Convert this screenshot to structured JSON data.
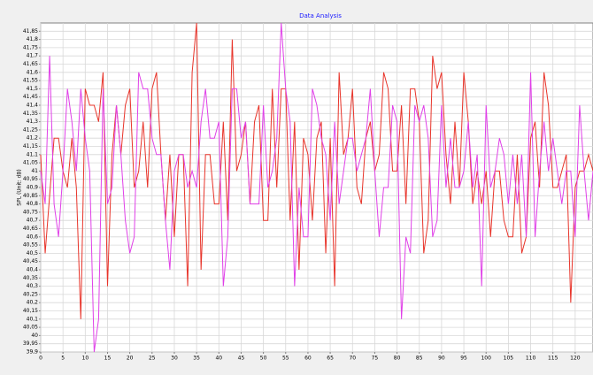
{
  "chart_data": {
    "type": "line",
    "title": "Data Analysis",
    "ylabel": "SPL (Unit: dB)",
    "xlim": [
      0,
      124
    ],
    "ylim": [
      39.9,
      41.9
    ],
    "grid": true,
    "xticks": [
      0,
      5,
      10,
      15,
      20,
      25,
      30,
      35,
      40,
      45,
      50,
      55,
      60,
      65,
      70,
      75,
      80,
      85,
      90,
      95,
      100,
      105,
      110,
      115,
      120
    ],
    "yticks": [
      {
        "value": 39.9,
        "label": "39,9"
      },
      {
        "value": 39.95,
        "label": "39,95"
      },
      40,
      {
        "value": 40.05,
        "label": "40,05"
      },
      {
        "value": 40.1,
        "label": "40,1"
      },
      {
        "value": 40.15,
        "label": "40,15"
      },
      {
        "value": 40.2,
        "label": "40,2"
      },
      {
        "value": 40.25,
        "label": "40,25"
      },
      {
        "value": 40.3,
        "label": "40,3"
      },
      {
        "value": 40.35,
        "label": "40,35"
      },
      {
        "value": 40.4,
        "label": "40,4"
      },
      {
        "value": 40.45,
        "label": "40,45"
      },
      {
        "value": 40.5,
        "label": "40,5"
      },
      {
        "value": 40.55,
        "label": "40,55"
      },
      {
        "value": 40.6,
        "label": "40,6"
      },
      {
        "value": 40.65,
        "label": "40,65"
      },
      {
        "value": 40.7,
        "label": "40,7"
      },
      {
        "value": 40.75,
        "label": "40,75"
      },
      {
        "value": 40.8,
        "label": "40,8"
      },
      {
        "value": 40.85,
        "label": "40,85"
      },
      {
        "value": 40.9,
        "label": "40,9"
      },
      {
        "value": 40.95,
        "label": "40,95"
      },
      41,
      {
        "value": 41.05,
        "label": "41,05"
      },
      {
        "value": 41.1,
        "label": "41,1"
      },
      {
        "value": 41.15,
        "label": "41,15"
      },
      {
        "value": 41.2,
        "label": "41,2"
      },
      {
        "value": 41.25,
        "label": "41,25"
      },
      {
        "value": 41.3,
        "label": "41,3"
      },
      {
        "value": 41.35,
        "label": "41,35"
      },
      {
        "value": 41.4,
        "label": "41,4"
      },
      {
        "value": 41.45,
        "label": "41,45"
      },
      {
        "value": 41.5,
        "label": "41,5"
      },
      {
        "value": 41.55,
        "label": "41,55"
      },
      {
        "value": 41.6,
        "label": "41,6"
      },
      {
        "value": 41.65,
        "label": "41,65"
      },
      {
        "value": 41.7,
        "label": "41,7"
      },
      {
        "value": 41.75,
        "label": "41,75"
      },
      {
        "value": 41.8,
        "label": "41,8"
      },
      {
        "value": 41.85,
        "label": "41,85"
      }
    ],
    "x": [
      0,
      1,
      2,
      3,
      4,
      5,
      6,
      7,
      8,
      9,
      10,
      11,
      12,
      13,
      14,
      15,
      16,
      17,
      18,
      19,
      20,
      21,
      22,
      23,
      24,
      25,
      26,
      27,
      28,
      29,
      30,
      31,
      32,
      33,
      34,
      35,
      36,
      37,
      38,
      39,
      40,
      41,
      42,
      43,
      44,
      45,
      46,
      47,
      48,
      49,
      50,
      51,
      52,
      53,
      54,
      55,
      56,
      57,
      58,
      59,
      60,
      61,
      62,
      63,
      64,
      65,
      66,
      67,
      68,
      69,
      70,
      71,
      72,
      73,
      74,
      75,
      76,
      77,
      78,
      79,
      80,
      81,
      82,
      83,
      84,
      85,
      86,
      87,
      88,
      89,
      90,
      91,
      92,
      93,
      94,
      95,
      96,
      97,
      98,
      99,
      100,
      101,
      102,
      103,
      104,
      105,
      106,
      107,
      108,
      109,
      110,
      111,
      112,
      113,
      114,
      115,
      116,
      117,
      118,
      119,
      120,
      121,
      122,
      123,
      124
    ],
    "series": [
      {
        "color": "#e8342a",
        "values": [
          41.1,
          40.5,
          40.85,
          41.2,
          41.2,
          41.0,
          40.9,
          41.2,
          40.9,
          40.1,
          41.5,
          41.4,
          41.4,
          41.3,
          41.6,
          40.3,
          41.1,
          41.4,
          41.1,
          41.4,
          41.5,
          40.9,
          41.0,
          41.3,
          40.9,
          41.5,
          41.6,
          41.1,
          40.7,
          41.1,
          40.6,
          41.1,
          41.1,
          40.3,
          41.6,
          41.9,
          40.4,
          41.1,
          41.1,
          40.8,
          40.8,
          41.3,
          40.7,
          41.8,
          41.0,
          41.1,
          41.3,
          40.8,
          41.3,
          41.4,
          40.7,
          40.7,
          41.5,
          40.9,
          41.5,
          41.5,
          40.7,
          41.3,
          40.4,
          41.2,
          41.1,
          40.7,
          41.2,
          41.3,
          40.5,
          41.2,
          40.3,
          41.6,
          41.1,
          41.2,
          41.5,
          40.9,
          40.8,
          41.2,
          41.3,
          41.0,
          41.1,
          41.6,
          41.5,
          41.0,
          41.0,
          41.4,
          40.8,
          41.5,
          41.5,
          41.3,
          40.5,
          40.7,
          41.7,
          41.5,
          41.6,
          41.1,
          40.8,
          41.3,
          40.9,
          41.6,
          41.3,
          40.8,
          41.0,
          40.8,
          41.0,
          40.6,
          41.0,
          41.0,
          40.7,
          40.6,
          40.6,
          41.1,
          40.5,
          40.6,
          41.2,
          41.3,
          40.9,
          41.6,
          41.4,
          40.9,
          40.9,
          41.0,
          41.1,
          40.2,
          40.9,
          41.0,
          41.0,
          41.1,
          41.0
        ]
      },
      {
        "color": "#e040e8",
        "values": [
          41.0,
          40.8,
          41.7,
          40.8,
          40.6,
          41.0,
          41.5,
          41.3,
          41.0,
          41.5,
          41.2,
          41.0,
          39.9,
          40.1,
          41.5,
          40.8,
          40.9,
          41.4,
          41.1,
          40.7,
          40.5,
          40.6,
          41.6,
          41.5,
          41.5,
          41.2,
          41.1,
          41.1,
          40.7,
          40.4,
          41.0,
          41.1,
          41.1,
          40.9,
          41.0,
          40.9,
          41.3,
          41.5,
          41.2,
          41.2,
          41.3,
          40.3,
          40.6,
          41.5,
          41.5,
          41.2,
          41.3,
          40.8,
          40.8,
          40.8,
          41.4,
          40.9,
          41.0,
          41.2,
          41.9,
          41.5,
          41.3,
          40.3,
          40.9,
          40.6,
          40.6,
          41.5,
          41.4,
          41.2,
          41.1,
          40.7,
          41.3,
          40.8,
          41.0,
          41.2,
          41.2,
          41.0,
          41.1,
          41.2,
          41.5,
          41.0,
          40.6,
          40.9,
          40.9,
          41.4,
          41.3,
          40.1,
          40.6,
          40.5,
          41.4,
          41.3,
          41.4,
          41.2,
          40.6,
          40.7,
          41.4,
          40.9,
          41.2,
          40.9,
          40.9,
          41.0,
          41.3,
          40.9,
          41.1,
          40.3,
          41.4,
          40.9,
          41.0,
          41.2,
          41.1,
          40.8,
          41.1,
          40.8,
          41.1,
          40.6,
          41.6,
          40.6,
          41.0,
          41.3,
          41.0,
          41.2,
          41.0,
          40.8,
          41.0,
          41.0,
          40.6,
          41.4,
          41.0,
          40.7,
          41.0
        ]
      }
    ]
  }
}
